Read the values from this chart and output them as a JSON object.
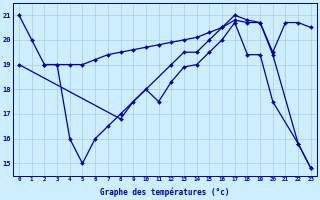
{
  "title": "Graphe des températures (°c)",
  "background_color": "#cceeff",
  "grid_color": "#aaccdd",
  "line_color": "#0000aa",
  "ylim": [
    14.5,
    21.5
  ],
  "yticks": [
    15,
    16,
    17,
    18,
    19,
    20,
    21
  ],
  "x_labels": [
    "0",
    "1",
    "2",
    "3",
    "4",
    "5",
    "6",
    "7",
    "8",
    "9",
    "10",
    "11",
    "12",
    "13",
    "14",
    "15",
    "16",
    "17",
    "18",
    "19",
    "20",
    "21",
    "22",
    "23"
  ],
  "series": [
    {
      "points": [
        [
          0,
          21.0
        ],
        [
          1,
          20.0
        ],
        [
          2,
          19.0
        ],
        [
          3,
          19.0
        ],
        [
          4,
          19.0
        ],
        [
          5,
          19.0
        ],
        [
          6,
          19.2
        ],
        [
          7,
          19.4
        ],
        [
          8,
          19.5
        ],
        [
          9,
          19.6
        ],
        [
          10,
          19.7
        ],
        [
          11,
          19.8
        ],
        [
          12,
          19.9
        ],
        [
          13,
          20.0
        ],
        [
          14,
          20.1
        ],
        [
          15,
          20.3
        ],
        [
          16,
          20.5
        ],
        [
          17,
          20.8
        ],
        [
          18,
          20.7
        ],
        [
          19,
          20.7
        ],
        [
          20,
          19.5
        ],
        [
          21,
          20.7
        ],
        [
          22,
          20.7
        ],
        [
          23,
          20.5
        ]
      ]
    },
    {
      "points": [
        [
          2,
          19.0
        ],
        [
          3,
          19.0
        ],
        [
          4,
          16.0
        ],
        [
          5,
          15.0
        ],
        [
          6,
          16.0
        ],
        [
          7,
          16.5
        ],
        [
          8,
          17.0
        ],
        [
          10,
          18.0
        ],
        [
          11,
          17.5
        ],
        [
          12,
          18.3
        ],
        [
          13,
          18.9
        ],
        [
          14,
          19.0
        ],
        [
          15,
          19.5
        ],
        [
          16,
          20.0
        ],
        [
          17,
          20.7
        ],
        [
          18,
          19.4
        ],
        [
          19,
          19.4
        ],
        [
          20,
          17.5
        ],
        [
          22,
          15.8
        ],
        [
          23,
          14.8
        ]
      ]
    },
    {
      "points": [
        [
          0,
          19.0
        ],
        [
          8,
          16.8
        ],
        [
          9,
          17.5
        ],
        [
          12,
          19.0
        ],
        [
          13,
          19.5
        ],
        [
          14,
          19.5
        ],
        [
          15,
          20.0
        ],
        [
          16,
          20.5
        ],
        [
          17,
          21.0
        ],
        [
          18,
          20.8
        ],
        [
          19,
          20.7
        ],
        [
          20,
          19.4
        ],
        [
          22,
          15.8
        ],
        [
          23,
          14.8
        ]
      ]
    }
  ]
}
